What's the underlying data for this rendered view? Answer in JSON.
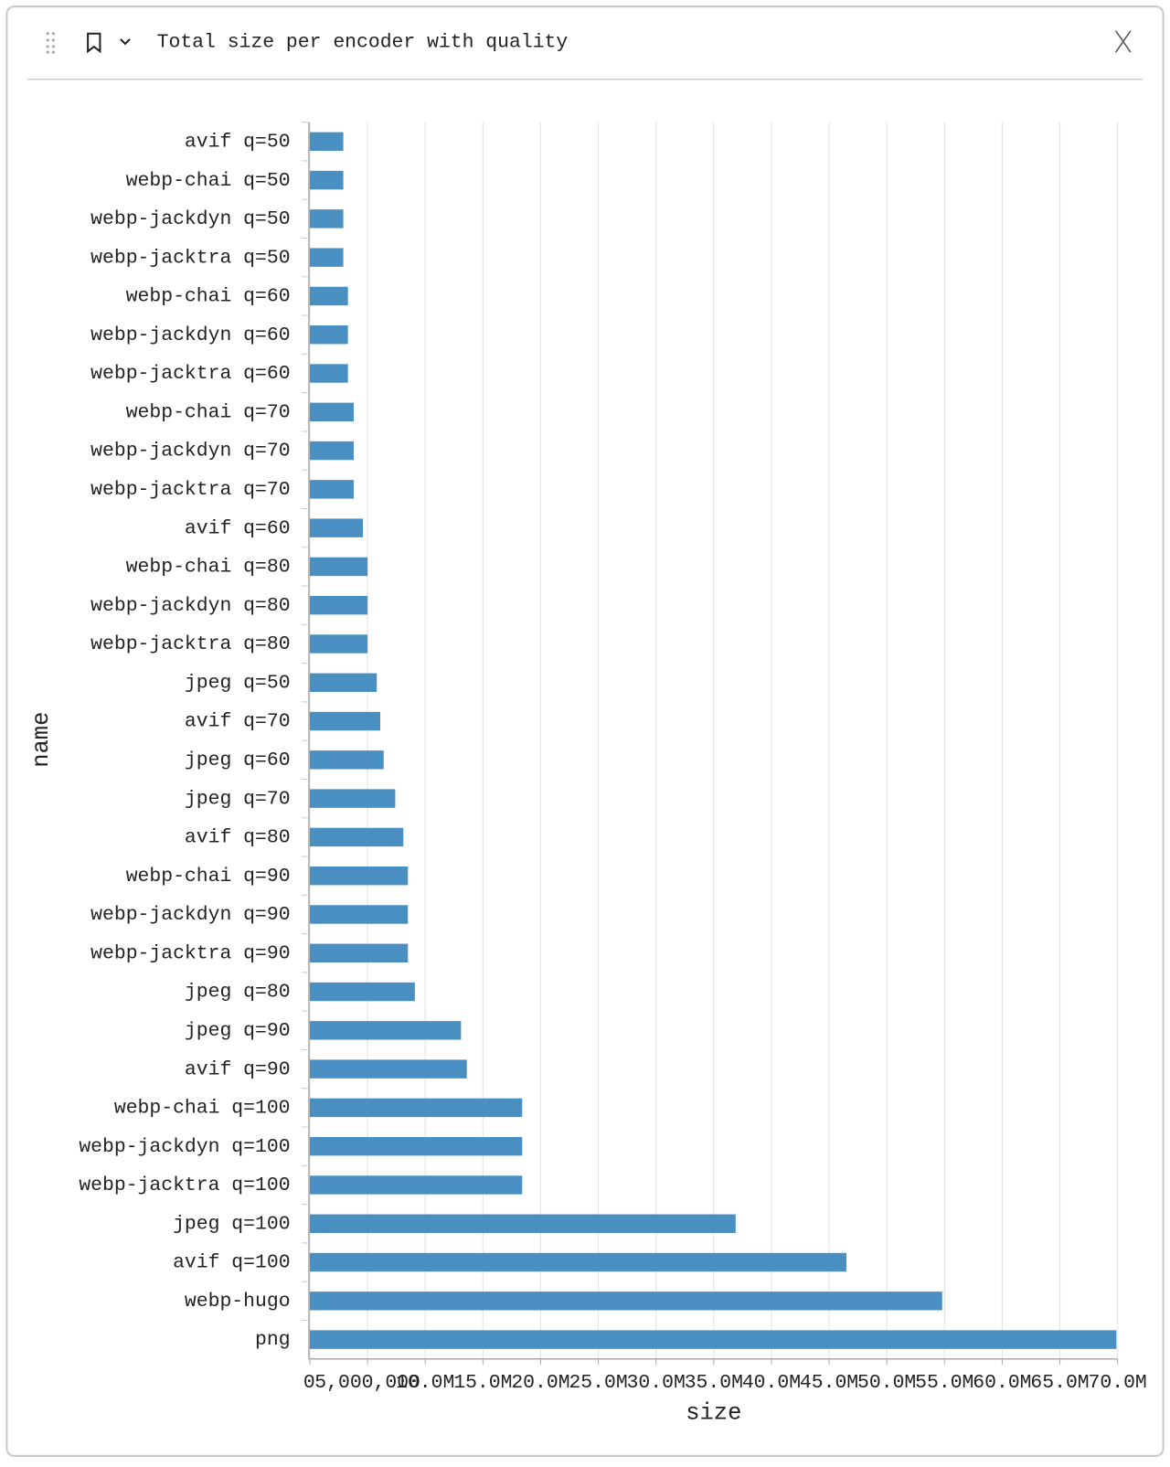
{
  "panel": {
    "title": "Total size per encoder with quality"
  },
  "chart_data": {
    "type": "bar",
    "orientation": "horizontal",
    "x_label": "size",
    "y_label": "name",
    "categories": [
      "avif q=50",
      "webp-chai q=50",
      "webp-jackdyn q=50",
      "webp-jacktra q=50",
      "webp-chai q=60",
      "webp-jackdyn q=60",
      "webp-jacktra q=60",
      "webp-chai q=70",
      "webp-jackdyn q=70",
      "webp-jacktra q=70",
      "avif q=60",
      "webp-chai q=80",
      "webp-jackdyn q=80",
      "webp-jacktra q=80",
      "jpeg q=50",
      "avif q=70",
      "jpeg q=60",
      "jpeg q=70",
      "avif q=80",
      "webp-chai q=90",
      "webp-jackdyn q=90",
      "webp-jacktra q=90",
      "jpeg q=80",
      "jpeg q=90",
      "avif q=90",
      "webp-chai q=100",
      "webp-jackdyn q=100",
      "webp-jacktra q=100",
      "jpeg q=100",
      "avif q=100",
      "webp-hugo",
      "png"
    ],
    "values": [
      2900000,
      2900000,
      2900000,
      2900000,
      3300000,
      3300000,
      3300000,
      3800000,
      3800000,
      3800000,
      4600000,
      5000000,
      5000000,
      5000000,
      5800000,
      6100000,
      6400000,
      7400000,
      8100000,
      8500000,
      8500000,
      8500000,
      9100000,
      13100000,
      13600000,
      18400000,
      18400000,
      18400000,
      36900000,
      46500000,
      54800000,
      69900000
    ],
    "color": "#4a8fc2",
    "xlim": [
      0,
      70000000
    ],
    "xticks": [
      0,
      {
        "value": 5000000,
        "label": "5,000,000"
      },
      {
        "value": 10000000,
        "label": "10.0M"
      },
      {
        "value": 15000000,
        "label": "15.0M"
      },
      {
        "value": 20000000,
        "label": "20.0M"
      },
      {
        "value": 25000000,
        "label": "25.0M"
      },
      {
        "value": 30000000,
        "label": "30.0M"
      },
      {
        "value": 35000000,
        "label": "35.0M"
      },
      {
        "value": 40000000,
        "label": "40.0M"
      },
      {
        "value": 45000000,
        "label": "45.0M"
      },
      {
        "value": 50000000,
        "label": "50.0M"
      },
      {
        "value": 55000000,
        "label": "55.0M"
      },
      {
        "value": 60000000,
        "label": "60.0M"
      },
      {
        "value": 65000000,
        "label": "65.0M"
      },
      {
        "value": 70000000,
        "label": "70.0M"
      }
    ],
    "grid": true
  }
}
